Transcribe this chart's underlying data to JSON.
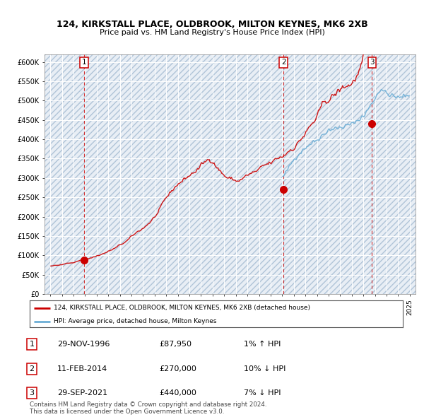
{
  "title": "124, KIRKSTALL PLACE, OLDBROOK, MILTON KEYNES, MK6 2XB",
  "subtitle": "Price paid vs. HM Land Registry's House Price Index (HPI)",
  "ylim": [
    0,
    620000
  ],
  "yticks": [
    0,
    50000,
    100000,
    150000,
    200000,
    250000,
    300000,
    350000,
    400000,
    450000,
    500000,
    550000,
    600000
  ],
  "ytick_labels": [
    "£0",
    "£50K",
    "£100K",
    "£150K",
    "£200K",
    "£250K",
    "£300K",
    "£350K",
    "£400K",
    "£450K",
    "£500K",
    "£550K",
    "£600K"
  ],
  "background_color": "#ffffff",
  "plot_bg_color": "#dce9f5",
  "grid_color": "#ffffff",
  "sale_color": "#cc0000",
  "hpi_color": "#6baed6",
  "sale_dates_num": [
    1996.913,
    2014.117,
    2021.747
  ],
  "sale_prices": [
    87950,
    270000,
    440000
  ],
  "sale_labels": [
    "1",
    "2",
    "3"
  ],
  "legend_line1": "124, KIRKSTALL PLACE, OLDBROOK, MILTON KEYNES, MK6 2XB (detached house)",
  "legend_line2": "HPI: Average price, detached house, Milton Keynes",
  "table_rows": [
    [
      "1",
      "29-NOV-1996",
      "£87,950",
      "1% ↑ HPI"
    ],
    [
      "2",
      "11-FEB-2014",
      "£270,000",
      "10% ↓ HPI"
    ],
    [
      "3",
      "29-SEP-2021",
      "£440,000",
      "7% ↓ HPI"
    ]
  ],
  "footer": "Contains HM Land Registry data © Crown copyright and database right 2024.\nThis data is licensed under the Open Government Licence v3.0.",
  "xlim_start": 1993.5,
  "xlim_end": 2025.5
}
